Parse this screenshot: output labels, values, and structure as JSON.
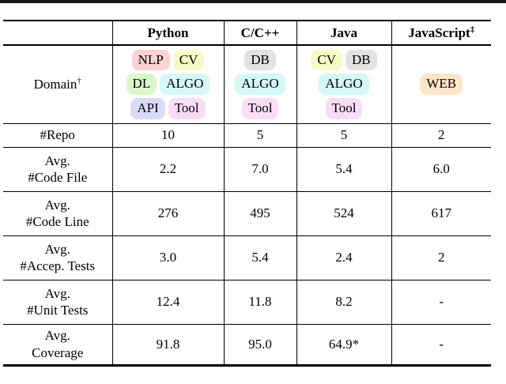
{
  "header": {
    "col0": "",
    "cols": [
      {
        "label": "Python",
        "sup": ""
      },
      {
        "label": "C/C++",
        "sup": ""
      },
      {
        "label": "Java",
        "sup": ""
      },
      {
        "label": "JavaScript",
        "sup": "‡"
      }
    ]
  },
  "domain": {
    "label": "Domain",
    "sup": "†",
    "colors": {
      "NLP": "#f9d2d2",
      "CV": "#fafac6",
      "DL": "#dcf6cb",
      "ALGO": "#d5f8f6",
      "API": "#dadaf7",
      "Tool": "#f9dcf8",
      "DB": "#e2e2e2",
      "WEB": "#fde5c8"
    },
    "python": [
      [
        "NLP",
        "CV"
      ],
      [
        "DL",
        "ALGO"
      ],
      [
        "API",
        "Tool"
      ]
    ],
    "cpp": [
      [
        "DB"
      ],
      [
        "ALGO"
      ],
      [
        "Tool"
      ]
    ],
    "java": [
      [
        "CV",
        "DB"
      ],
      [
        "ALGO"
      ],
      [
        "Tool"
      ]
    ],
    "javascript": [
      [
        "WEB"
      ]
    ]
  },
  "rows": [
    {
      "label": [
        "#Repo"
      ],
      "values": [
        "10",
        "5",
        "5",
        "2"
      ]
    },
    {
      "label": [
        "Avg.",
        "#Code File"
      ],
      "values": [
        "2.2",
        "7.0",
        "5.4",
        "6.0"
      ]
    },
    {
      "label": [
        "Avg.",
        "#Code Line"
      ],
      "values": [
        "276",
        "495",
        "524",
        "617"
      ]
    },
    {
      "label": [
        "Avg.",
        "#Accep. Tests"
      ],
      "values": [
        "3.0",
        "5.4",
        "2.4",
        "2"
      ]
    },
    {
      "label": [
        "Avg.",
        "#Unit Tests"
      ],
      "values": [
        "12.4",
        "11.8",
        "8.2",
        "-"
      ]
    },
    {
      "label": [
        "Avg.",
        "Coverage"
      ],
      "values": [
        "91.8",
        "95.0",
        "64.9*",
        "-"
      ]
    }
  ]
}
